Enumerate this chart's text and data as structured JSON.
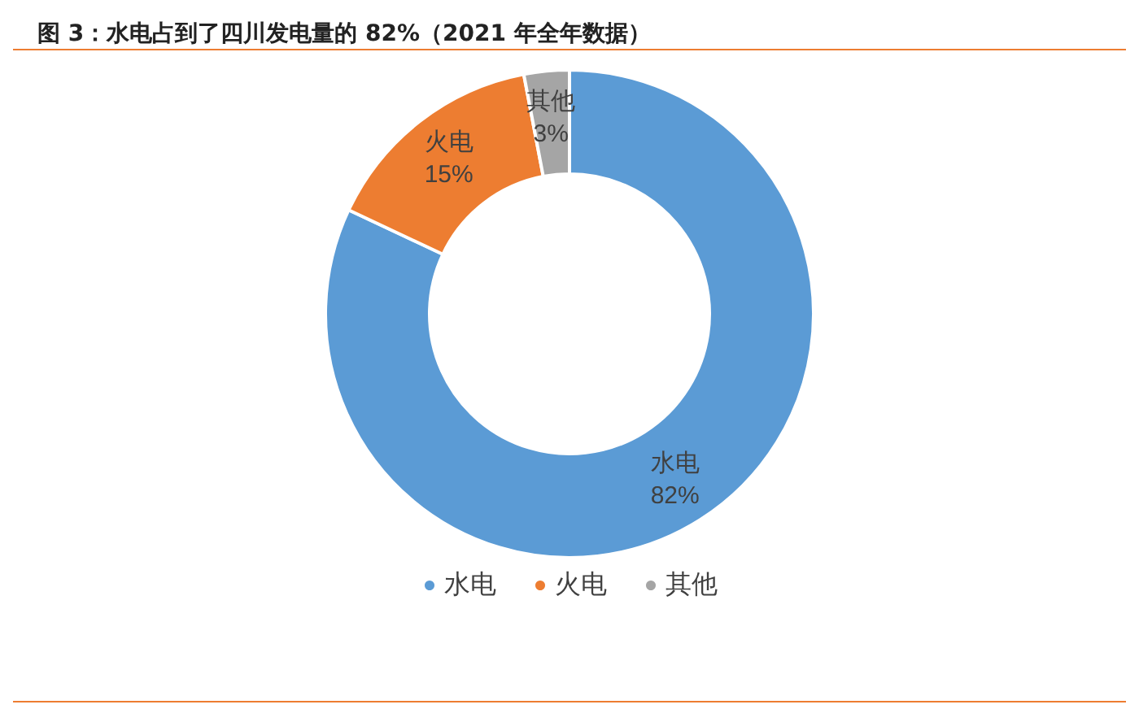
{
  "chart_data": {
    "type": "donut",
    "title": "图 3：水电占到了四川发电量的 82%（2021 年全年数据）",
    "categories": [
      "水电",
      "火电",
      "其他"
    ],
    "values": [
      82,
      15,
      3
    ],
    "colors": [
      "#5b9bd5",
      "#ed7d31",
      "#a5a5a5"
    ],
    "value_labels": [
      "82%",
      "15%",
      "3%"
    ],
    "legend": "bottom"
  }
}
